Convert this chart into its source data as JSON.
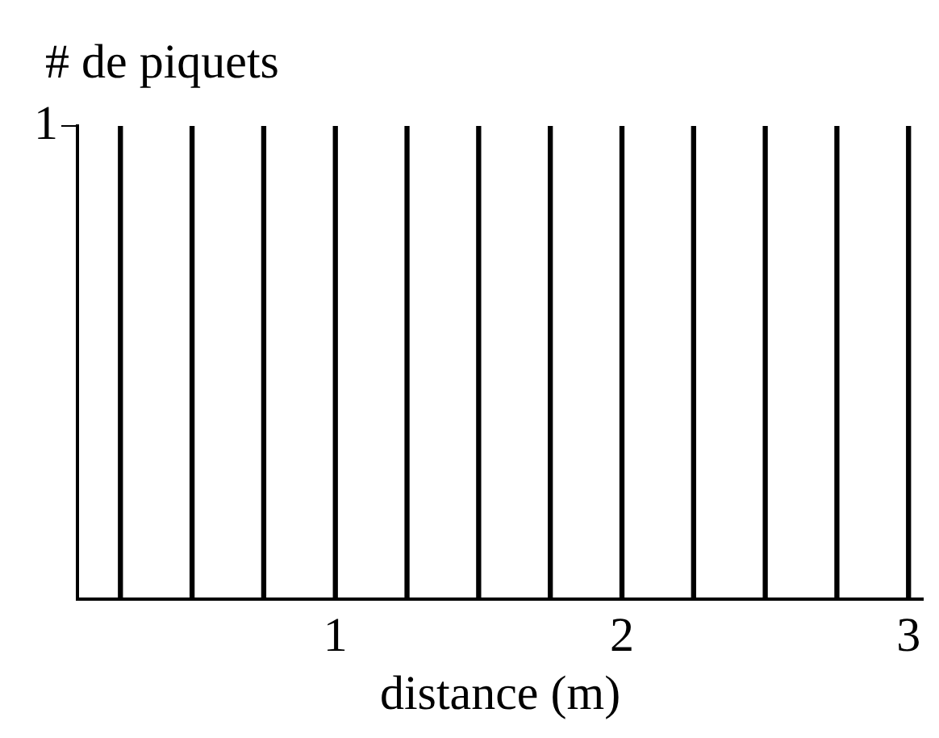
{
  "chart_data": {
    "type": "bar",
    "xlabel": "distance (m)",
    "ylabel": "# de piquets",
    "x": [
      0.25,
      0.5,
      0.75,
      1,
      1.25,
      1.5,
      1.75,
      2,
      2.25,
      2.5,
      2.75,
      3
    ],
    "values": [
      1,
      1,
      1,
      1,
      1,
      1,
      1,
      1,
      1,
      1,
      1,
      1
    ],
    "color": "#000000",
    "xlim": [
      0.1,
      3.05
    ],
    "xticks": [
      1,
      2,
      3
    ],
    "ylim": [
      0,
      1
    ],
    "yticks": [
      1
    ],
    "grid": false,
    "legend": false
  }
}
